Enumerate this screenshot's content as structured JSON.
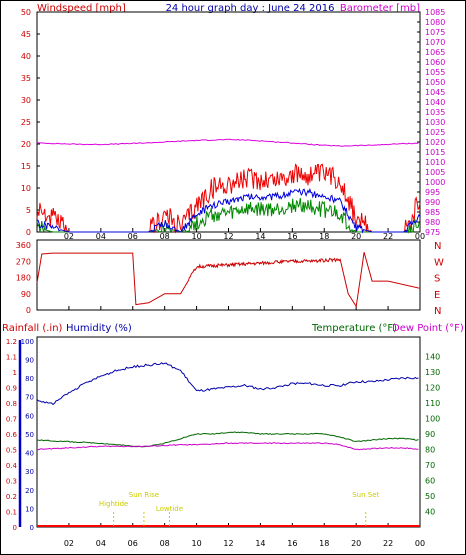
{
  "header": {
    "left": "Windspeed [mph]",
    "center": "24 hour graph day : June 24 2016",
    "right": "Barometer [mb]"
  },
  "colors": {
    "wind": "#ee0000",
    "wind_avg": "#0000dd",
    "wind_green": "#008800",
    "baro": "#dd00dd",
    "dir": "#cc0000",
    "humidity": "#0000aa",
    "temp": "#006600",
    "dew": "#cc00cc",
    "rain": "#ff0000",
    "sun": "#cccc00"
  },
  "x_ticks": [
    "02",
    "04",
    "06",
    "08",
    "10",
    "12",
    "14",
    "16",
    "18",
    "20",
    "22",
    "00"
  ],
  "chart_data": [
    {
      "type": "line",
      "name": "wind-barometer",
      "y_left": {
        "label": "Windspeed [mph]",
        "ticks": [
          "0",
          "5",
          "10",
          "15",
          "20",
          "25",
          "30",
          "35",
          "40",
          "45",
          "50"
        ],
        "range": [
          0,
          50
        ]
      },
      "y_right": {
        "label": "Barometer [mb]",
        "ticks": [
          "975",
          "980",
          "985",
          "990",
          "995",
          "1000",
          "1005",
          "1010",
          "1015",
          "1020",
          "1025",
          "1030",
          "1035",
          "1040",
          "1045",
          "1050",
          "1055",
          "1060",
          "1065",
          "1070",
          "1075",
          "1080",
          "1085"
        ],
        "range": [
          975,
          1085
        ]
      },
      "x_hours": [
        0,
        1,
        2,
        3,
        4,
        5,
        6,
        7,
        8,
        9,
        10,
        11,
        12,
        13,
        14,
        15,
        16,
        17,
        18,
        19,
        20,
        21,
        22,
        23,
        24
      ],
      "barometer": [
        1019.5,
        1019.3,
        1019.0,
        1018.8,
        1018.8,
        1019.0,
        1019.3,
        1019.6,
        1020.0,
        1020.4,
        1020.8,
        1021.0,
        1021.2,
        1021.0,
        1020.6,
        1020.0,
        1019.5,
        1018.9,
        1018.3,
        1018.0,
        1018.2,
        1018.4,
        1018.8,
        1019.2,
        1019.4
      ],
      "wind_gust": [
        5,
        3,
        0,
        0,
        0,
        0,
        0,
        0,
        4,
        1,
        6,
        10,
        11,
        12,
        12,
        12,
        13,
        13,
        13,
        12,
        3,
        0,
        0,
        0,
        7
      ],
      "wind_avg": [
        2,
        1,
        0,
        0,
        0,
        0,
        0,
        0,
        2,
        0,
        4,
        6,
        7,
        8,
        8,
        8,
        9,
        9,
        8,
        7,
        1,
        0,
        0,
        0,
        4
      ],
      "wind_low": [
        1,
        0,
        0,
        0,
        0,
        0,
        0,
        0,
        1,
        0,
        2,
        4,
        4,
        5,
        5,
        5,
        6,
        6,
        5,
        4,
        0,
        0,
        0,
        0,
        2
      ]
    },
    {
      "type": "line",
      "name": "wind-direction",
      "y_left": {
        "ticks": [
          "360",
          "270",
          "180",
          "90",
          "0"
        ],
        "range": [
          0,
          360
        ]
      },
      "y_right": {
        "ticks": [
          "N",
          "W",
          "S",
          "E",
          "N"
        ]
      },
      "x_hours": [
        0,
        0.3,
        1,
        2,
        3,
        4,
        5,
        6,
        6.2,
        7,
        8,
        9,
        10,
        11,
        12,
        13,
        14,
        15,
        16,
        17,
        18,
        19,
        19.5,
        20,
        20.5,
        21,
        22,
        23,
        24
      ],
      "direction": [
        150,
        310,
        315,
        315,
        315,
        315,
        315,
        315,
        30,
        40,
        90,
        90,
        240,
        245,
        250,
        255,
        260,
        265,
        270,
        270,
        275,
        280,
        90,
        20,
        320,
        160,
        160,
        140,
        120
      ]
    },
    {
      "type": "line",
      "name": "rain-humidity-temperature",
      "y_left_rain": {
        "label": "Rainfall (.in)",
        "ticks": [
          "0",
          "0.1",
          "0.2",
          "0.3",
          "0.4",
          "0.5",
          "0.6",
          "0.7",
          "0.8",
          "0.9",
          "1",
          "1.1",
          "1.2"
        ],
        "range": [
          0,
          1.2
        ]
      },
      "y_left_hum": {
        "label": "Humidity (%)",
        "ticks": [
          "0",
          "10",
          "20",
          "30",
          "40",
          "50",
          "60",
          "70",
          "80",
          "90",
          "100"
        ],
        "range": [
          0,
          100
        ]
      },
      "y_right": {
        "label_temp": "Temperature (°F)",
        "label_dew": "Dew Point (°F)",
        "ticks": [
          "40",
          "50",
          "60",
          "70",
          "80",
          "90",
          "100",
          "110",
          "120",
          "130",
          "140"
        ],
        "range": [
          30,
          150
        ]
      },
      "x_hours": [
        0,
        1,
        2,
        3,
        4,
        5,
        6,
        7,
        8,
        9,
        10,
        11,
        12,
        13,
        14,
        15,
        16,
        17,
        18,
        19,
        20,
        21,
        22,
        23,
        24
      ],
      "humidity": [
        68,
        66,
        72,
        77,
        81,
        84,
        86,
        87,
        88,
        84,
        73,
        74,
        75,
        76,
        74,
        75,
        77,
        77,
        76,
        76,
        78,
        78,
        79,
        80,
        80
      ],
      "temperature": [
        86,
        85.5,
        85,
        84.5,
        84,
        83,
        82,
        82,
        84,
        87,
        90,
        90,
        91,
        91,
        90,
        90,
        90,
        90,
        90,
        88,
        85,
        86,
        87,
        87,
        86
      ],
      "dew_point": [
        80,
        80.5,
        81,
        81.5,
        82,
        82,
        82,
        82,
        82.5,
        83,
        83,
        83.5,
        84,
        84,
        84,
        84,
        84,
        84,
        84,
        83,
        80,
        80.5,
        81,
        81,
        80
      ],
      "rainfall": [
        0,
        0,
        0,
        0,
        0,
        0,
        0,
        0,
        0,
        0,
        0,
        0,
        0,
        0,
        0,
        0,
        0,
        0,
        0,
        0,
        0,
        0,
        0,
        0,
        0
      ]
    }
  ],
  "events": [
    {
      "label": "Hightide",
      "hour": 4.8
    },
    {
      "label": "Sun Rise",
      "hour": 6.7
    },
    {
      "label": "Lowtide",
      "hour": 8.3
    },
    {
      "label": "Sun Set",
      "hour": 20.6
    }
  ]
}
